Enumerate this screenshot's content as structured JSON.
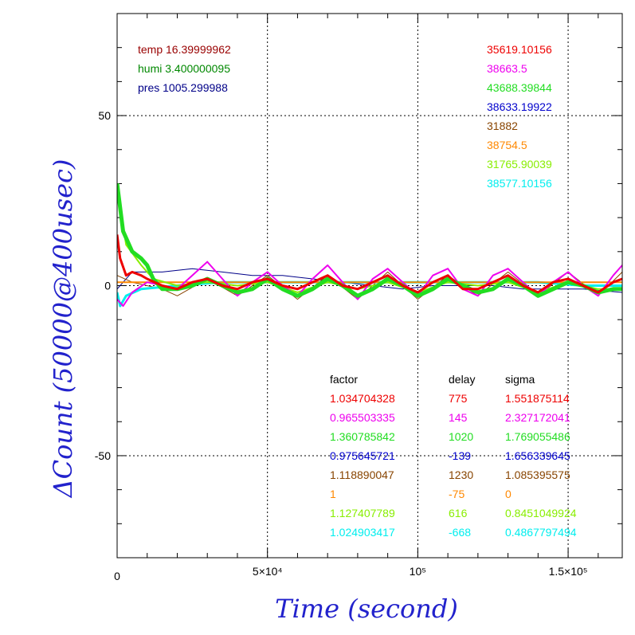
{
  "chart_data": {
    "type": "line",
    "xlabel": "Time (second)",
    "ylabel": "ΔCount (50000@400usec)",
    "xlim": [
      0,
      168000
    ],
    "ylim": [
      -80,
      80
    ],
    "grid": true,
    "x_ticks": [
      {
        "value": 50000,
        "label": "5×10⁴"
      },
      {
        "value": 100000,
        "label": "10⁵"
      },
      {
        "value": 150000,
        "label": "1.5×10⁵"
      }
    ],
    "x_origin_label": "0",
    "y_ticks": [
      {
        "value": 50,
        "label": "50"
      },
      {
        "value": 0,
        "label": "0"
      },
      {
        "value": -50,
        "label": "-50"
      }
    ],
    "env": [
      {
        "text": "temp 16.39999962",
        "color": "#990000"
      },
      {
        "text": "humi 3.400000095",
        "color": "#008800"
      },
      {
        "text": "pres 1005.299988",
        "color": "#000088"
      }
    ],
    "means": [
      {
        "text": "35619.10156",
        "color": "#ee0000"
      },
      {
        "text": "38663.5",
        "color": "#ee00ee"
      },
      {
        "text": "43688.39844",
        "color": "#22dd22"
      },
      {
        "text": "38633.19922",
        "color": "#0000cc"
      },
      {
        "text": "31882",
        "color": "#884400"
      },
      {
        "text": "38754.5",
        "color": "#ff8800"
      },
      {
        "text": "31765.90039",
        "color": "#88ee00"
      },
      {
        "text": "38577.10156",
        "color": "#00eeee"
      }
    ],
    "table": {
      "headers": [
        "factor",
        "delay",
        "sigma"
      ],
      "rows": [
        {
          "factor": "1.034704328",
          "delay": "775",
          "sigma": "1.551875114",
          "color": "#ee0000"
        },
        {
          "factor": "0.965503335",
          "delay": "145",
          "sigma": "2.327172041",
          "color": "#ee00ee"
        },
        {
          "factor": "1.360785842",
          "delay": "1020",
          "sigma": "1.769055486",
          "color": "#22dd22"
        },
        {
          "factor": "0.975645721",
          "delay": "-139",
          "sigma": "1.656339645",
          "color": "#0000cc"
        },
        {
          "factor": "1.118890047",
          "delay": "1230",
          "sigma": "1.085395575",
          "color": "#884400"
        },
        {
          "factor": "1",
          "delay": "-75",
          "sigma": "0",
          "color": "#ff8800"
        },
        {
          "factor": "1.127407789",
          "delay": "616",
          "sigma": "0.8451049924",
          "color": "#88ee00"
        },
        {
          "factor": "1.024903417",
          "delay": "-668",
          "sigma": "0.4867797494",
          "color": "#00eeee"
        }
      ]
    },
    "series": [
      {
        "color": "#000088",
        "width": 1,
        "x": [
          0,
          5000,
          15000,
          25000,
          35000,
          45000,
          55000,
          65000,
          75000,
          85000,
          95000,
          105000,
          115000,
          125000,
          135000,
          145000,
          155000,
          168000
        ],
        "y": [
          -1,
          4,
          4,
          5,
          4,
          3,
          3,
          2,
          1,
          0,
          -1,
          0,
          0,
          0,
          -1,
          -1,
          -1,
          -2
        ]
      },
      {
        "color": "#884400",
        "width": 1,
        "x": [
          0,
          5000,
          15000,
          20000,
          30000,
          40000,
          50000,
          60000,
          70000,
          80000,
          90000,
          100000,
          110000,
          120000,
          130000,
          140000,
          150000,
          160000,
          168000
        ],
        "y": [
          3,
          1,
          -1,
          -3,
          2,
          -3,
          3,
          -4,
          3,
          -4,
          4,
          -4,
          3,
          -3,
          4,
          -3,
          4,
          -3,
          4
        ]
      },
      {
        "color": "#00eeee",
        "width": 3,
        "x": [
          0,
          1000,
          3000,
          8000,
          20000,
          35000,
          50000,
          65000,
          80000,
          95000,
          110000,
          125000,
          140000,
          155000,
          168000
        ],
        "y": [
          -2,
          -6,
          -3,
          -1,
          0,
          1,
          1,
          1,
          1,
          1,
          1,
          1,
          1,
          0,
          0
        ]
      },
      {
        "color": "#ff8800",
        "width": 2,
        "x": [
          0,
          2000,
          10000,
          25000,
          50000,
          75000,
          100000,
          125000,
          150000,
          168000
        ],
        "y": [
          1,
          1,
          1,
          1,
          1,
          1,
          1,
          1,
          1,
          1
        ]
      },
      {
        "color": "#88ee00",
        "width": 2,
        "x": [
          0,
          3000,
          8000,
          12000,
          20000,
          30000,
          40000,
          50000,
          60000,
          70000,
          80000,
          90000,
          100000,
          110000,
          120000,
          130000,
          140000,
          150000,
          160000,
          168000
        ],
        "y": [
          28,
          12,
          6,
          2,
          0,
          1,
          0,
          1,
          -2,
          1,
          -1,
          1,
          -2,
          1,
          0,
          1,
          -2,
          1,
          -1,
          -1
        ]
      },
      {
        "color": "#ee00ee",
        "width": 2,
        "x": [
          0,
          2000,
          5000,
          10000,
          15000,
          20000,
          25000,
          30000,
          35000,
          40000,
          45000,
          50000,
          55000,
          60000,
          65000,
          70000,
          75000,
          80000,
          85000,
          90000,
          95000,
          100000,
          105000,
          110000,
          115000,
          120000,
          125000,
          130000,
          135000,
          140000,
          145000,
          150000,
          155000,
          160000,
          165000,
          168000
        ],
        "y": [
          -4,
          -6,
          -2,
          1,
          0,
          -1,
          3,
          7,
          2,
          -3,
          1,
          4,
          0,
          -3,
          2,
          6,
          1,
          -4,
          2,
          5,
          1,
          -3,
          3,
          5,
          -1,
          -3,
          3,
          5,
          1,
          -3,
          1,
          4,
          0,
          -3,
          3,
          6
        ]
      },
      {
        "color": "#22dd22",
        "width": 5,
        "x": [
          0,
          2000,
          5000,
          8000,
          10000,
          12000,
          15000,
          20000,
          25000,
          30000,
          35000,
          40000,
          45000,
          50000,
          55000,
          60000,
          65000,
          70000,
          75000,
          80000,
          85000,
          90000,
          95000,
          100000,
          105000,
          110000,
          115000,
          120000,
          125000,
          130000,
          135000,
          140000,
          145000,
          150000,
          155000,
          160000,
          165000,
          168000
        ],
        "y": [
          30,
          16,
          10,
          8,
          6,
          2,
          -1,
          -1,
          0,
          2,
          0,
          -2,
          -1,
          2,
          -1,
          -3,
          -1,
          2,
          0,
          -3,
          -1,
          2,
          0,
          -3,
          -1,
          2,
          0,
          -2,
          -1,
          2,
          0,
          -3,
          -1,
          1,
          0,
          -2,
          -1,
          -1
        ]
      },
      {
        "color": "#ee0000",
        "width": 3,
        "x": [
          0,
          1000,
          3000,
          5000,
          8000,
          10000,
          15000,
          20000,
          25000,
          30000,
          35000,
          40000,
          45000,
          50000,
          55000,
          60000,
          65000,
          70000,
          75000,
          80000,
          85000,
          90000,
          95000,
          100000,
          105000,
          110000,
          115000,
          120000,
          125000,
          130000,
          135000,
          140000,
          145000,
          150000,
          155000,
          160000,
          165000,
          168000
        ],
        "y": [
          15,
          8,
          3,
          4,
          3,
          2,
          0,
          -1,
          1,
          2,
          0,
          -1,
          1,
          2,
          0,
          -1,
          1,
          3,
          0,
          -1,
          1,
          3,
          0,
          -2,
          1,
          3,
          -1,
          -1,
          1,
          3,
          0,
          -2,
          1,
          2,
          0,
          -2,
          1,
          2
        ]
      }
    ]
  }
}
